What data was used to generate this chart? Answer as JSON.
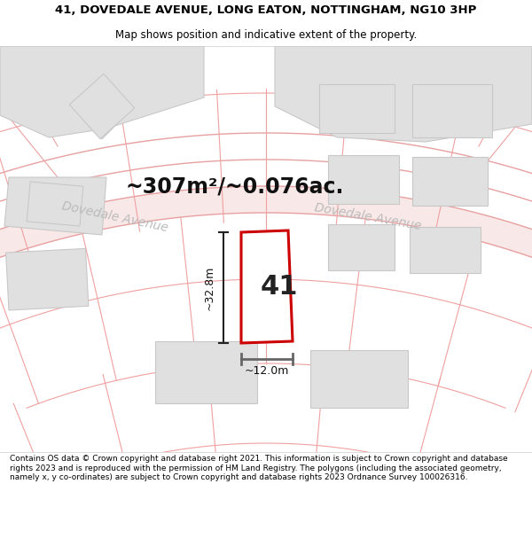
{
  "title_line1": "41, DOVEDALE AVENUE, LONG EATON, NOTTINGHAM, NG10 3HP",
  "title_line2": "Map shows position and indicative extent of the property.",
  "area_text": "~307m²/~0.076ac.",
  "width_label": "~12.0m",
  "height_label": "~32.8m",
  "plot_number": "41",
  "street_name_left": "Dovedale Avenue",
  "street_name_right": "Dovedale Avenue",
  "footer_text": "Contains OS data © Crown copyright and database right 2021. This information is subject to Crown copyright and database rights 2023 and is reproduced with the permission of HM Land Registry. The polygons (including the associated geometry, namely x, y co-ordinates) are subject to Crown copyright and database rights 2023 Ordnance Survey 100026316.",
  "bg_color": "#ffffff",
  "map_bg": "#ffffff",
  "road_fill": "#f9e8e8",
  "road_line": "#e8a0a0",
  "parcel_line": "#f0a0a0",
  "building_fill": "#e0e0e0",
  "building_edge": "#c8c8c8",
  "plot_fill": "#ffffff",
  "plot_edge": "#cc0000",
  "title_color": "#000000",
  "street_label_color": "#bbbbbb",
  "dim_color": "#222222",
  "dim_bar_color": "#666666",
  "title_fontsize": 9.5,
  "subtitle_fontsize": 8.5,
  "area_fontsize": 17,
  "plot_label_fontsize": 22,
  "dim_fontsize": 9,
  "street_fontsize": 10,
  "footer_fontsize": 6.5
}
